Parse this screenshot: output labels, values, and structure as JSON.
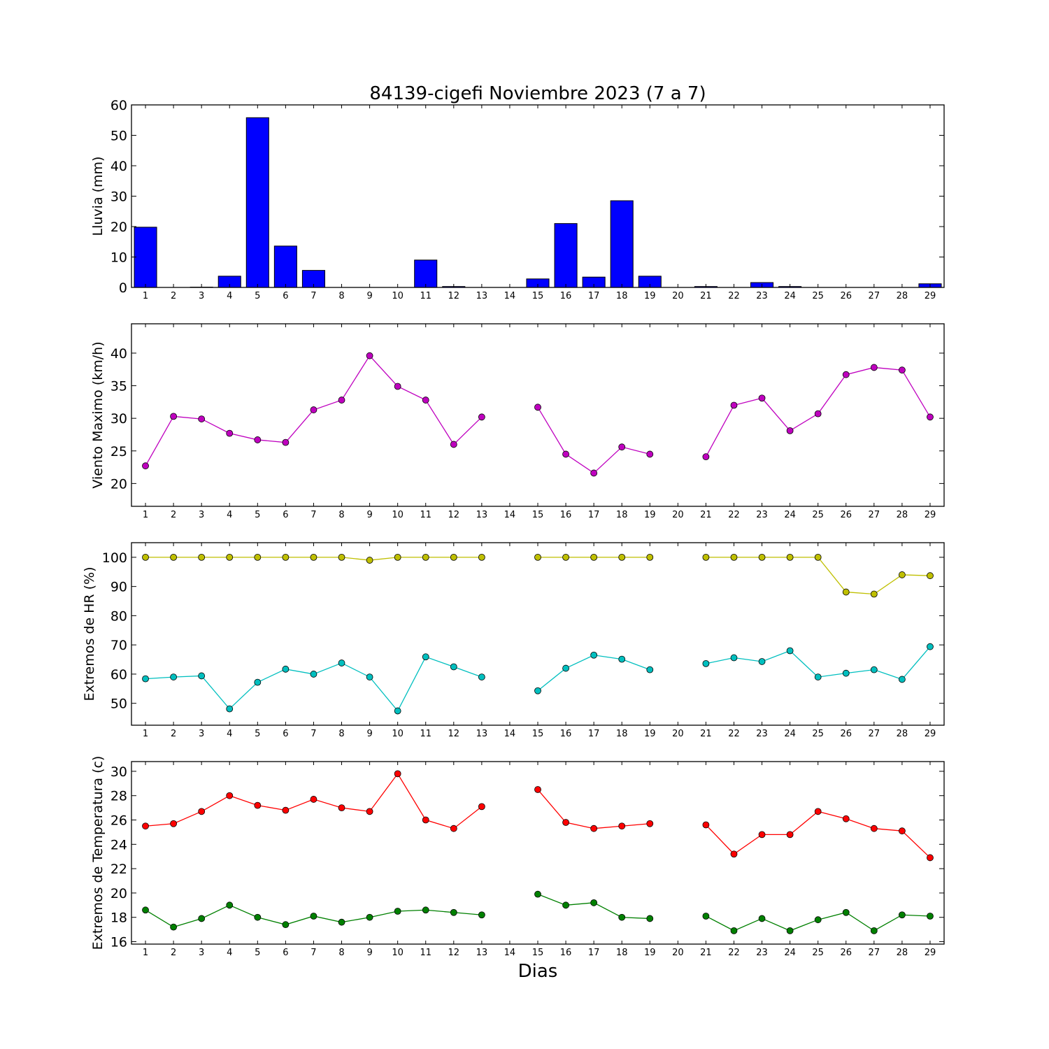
{
  "figure": {
    "title": "84139-cigefi Noviembre 2023  (7 a 7)",
    "xlabel": "Dias"
  },
  "chart_data": [
    {
      "type": "bar",
      "ylabel": "Lluvia (mm)",
      "ylim": [
        0,
        60
      ],
      "yticks": [
        0,
        10,
        20,
        30,
        40,
        50,
        60
      ],
      "categories": [
        1,
        2,
        3,
        4,
        5,
        6,
        7,
        8,
        9,
        10,
        11,
        12,
        13,
        14,
        15,
        16,
        17,
        18,
        19,
        20,
        21,
        22,
        23,
        24,
        25,
        26,
        27,
        28,
        29
      ],
      "series": [
        {
          "color": "#0000ff",
          "values": [
            19.8,
            0,
            0.1,
            3.7,
            55.8,
            13.6,
            5.6,
            0,
            0,
            0,
            9.0,
            0.3,
            0,
            0,
            2.8,
            21.0,
            3.4,
            28.5,
            3.7,
            0,
            0.3,
            0,
            1.6,
            0.3,
            0,
            0,
            0,
            0,
            1.2
          ]
        }
      ],
      "grid": false
    },
    {
      "type": "line",
      "ylabel": "Viento Maximo (km/h)",
      "ylim": [
        16.5,
        44.5
      ],
      "yticks": [
        20,
        25,
        30,
        35,
        40
      ],
      "x": [
        1,
        2,
        3,
        4,
        5,
        6,
        7,
        8,
        9,
        10,
        11,
        12,
        13,
        14,
        15,
        16,
        17,
        18,
        19,
        20,
        21,
        22,
        23,
        24,
        25,
        26,
        27,
        28,
        29
      ],
      "series": [
        {
          "color": "#bf00bf",
          "values": [
            22.7,
            30.3,
            29.9,
            27.7,
            26.7,
            26.3,
            31.3,
            32.8,
            39.6,
            34.9,
            32.8,
            26.0,
            30.2,
            null,
            31.7,
            24.5,
            21.6,
            25.6,
            24.5,
            null,
            24.1,
            32.0,
            33.1,
            28.1,
            30.7,
            36.7,
            37.8,
            37.4,
            30.2
          ]
        }
      ],
      "grid": false
    },
    {
      "type": "line",
      "ylabel": "Extremos de HR (%)",
      "ylim": [
        42.5,
        105
      ],
      "yticks": [
        50,
        60,
        70,
        80,
        90,
        100
      ],
      "x": [
        1,
        2,
        3,
        4,
        5,
        6,
        7,
        8,
        9,
        10,
        11,
        12,
        13,
        14,
        15,
        16,
        17,
        18,
        19,
        20,
        21,
        22,
        23,
        24,
        25,
        26,
        27,
        28,
        29
      ],
      "series": [
        {
          "color": "#bfbf00",
          "values": [
            100,
            100,
            100,
            100,
            100,
            100,
            100,
            100,
            99,
            100,
            100,
            100,
            100,
            null,
            100,
            100,
            100,
            100,
            100,
            null,
            100,
            100,
            100,
            100,
            100,
            88.1,
            87.4,
            94,
            93.7
          ]
        },
        {
          "color": "#00bfbf",
          "values": [
            58.4,
            59.0,
            59.4,
            48.1,
            57.2,
            61.7,
            60.0,
            63.8,
            59.0,
            47.4,
            65.9,
            62.5,
            59.0,
            null,
            54.3,
            62.0,
            66.5,
            65.1,
            61.5,
            null,
            63.6,
            65.6,
            64.3,
            68.0,
            59.0,
            60.3,
            61.5,
            58.2,
            69.4
          ]
        }
      ],
      "grid": false
    },
    {
      "type": "line",
      "ylabel": "Extremos de Temperatura (c)",
      "ylim": [
        15.8,
        30.8
      ],
      "yticks": [
        16,
        18,
        20,
        22,
        24,
        26,
        28,
        30
      ],
      "x": [
        1,
        2,
        3,
        4,
        5,
        6,
        7,
        8,
        9,
        10,
        11,
        12,
        13,
        14,
        15,
        16,
        17,
        18,
        19,
        20,
        21,
        22,
        23,
        24,
        25,
        26,
        27,
        28,
        29
      ],
      "series": [
        {
          "color": "#ff0000",
          "values": [
            25.5,
            25.7,
            26.7,
            28.0,
            27.2,
            26.8,
            27.7,
            27.0,
            26.7,
            29.8,
            26.0,
            25.3,
            27.1,
            null,
            28.5,
            25.8,
            25.3,
            25.5,
            25.7,
            null,
            25.6,
            23.2,
            24.8,
            24.8,
            26.7,
            26.1,
            25.3,
            25.1,
            22.9
          ]
        },
        {
          "color": "#008000",
          "values": [
            18.6,
            17.2,
            17.9,
            19.0,
            18.0,
            17.4,
            18.1,
            17.6,
            18.0,
            18.5,
            18.6,
            18.4,
            18.2,
            null,
            19.9,
            19.0,
            19.2,
            18.0,
            17.9,
            null,
            18.1,
            16.9,
            17.9,
            16.9,
            17.8,
            18.4,
            16.9,
            18.2,
            18.1
          ]
        }
      ],
      "grid": false
    }
  ]
}
